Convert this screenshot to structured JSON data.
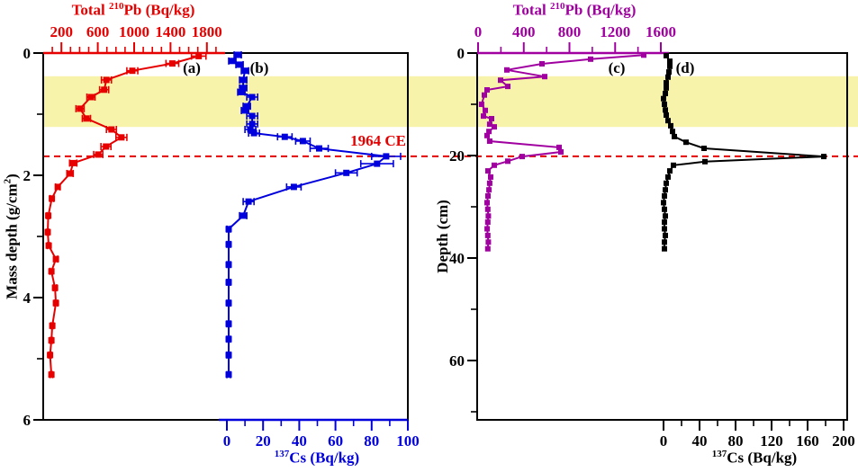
{
  "figure": {
    "left_panel": {
      "top_axis": {
        "title_prefix": "Total ",
        "title_sup": "210",
        "title_suffix": "Pb (Bq/kg)",
        "color": "#e60000",
        "labeled_ticks": [
          200,
          600,
          1000,
          1400,
          1800
        ],
        "minor_ticks": [
          100,
          300,
          400,
          500,
          700,
          800,
          900,
          1100,
          1200,
          1300,
          1500,
          1600,
          1700,
          1900
        ],
        "range": [
          0,
          2000
        ]
      },
      "bottom_axis": {
        "title_prefix": "",
        "title_sup": "137",
        "title_suffix": "Cs (Bq/kg)",
        "color": "#0000dd",
        "labeled_ticks": [
          0,
          20,
          40,
          60,
          80,
          100
        ],
        "minor_ticks": [
          10,
          30,
          50,
          70,
          90
        ],
        "range": [
          0,
          100
        ]
      },
      "y_axis": {
        "title_prefix": "Mass depth (g/cm",
        "title_sup": "2",
        "title_suffix": ")",
        "labeled_ticks": [
          0,
          2,
          4,
          6
        ],
        "minor_ticks": [
          1,
          3,
          5
        ],
        "range": [
          0,
          6
        ]
      },
      "series_label_a": "(a)",
      "series_label_b": "(b)"
    },
    "right_panel": {
      "top_axis": {
        "title_prefix": "Total ",
        "title_sup": "210",
        "title_suffix": "Pb (Bq/kg)",
        "color": "#a000a0",
        "labeled_ticks": [
          0,
          400,
          800,
          1200,
          1600
        ],
        "minor_ticks": [
          200,
          600,
          1000,
          1400
        ],
        "range": [
          0,
          1680
        ]
      },
      "bottom_axis": {
        "title_prefix": "",
        "title_sup": "137",
        "title_suffix": "Cs (Bq/kg)",
        "color": "#000000",
        "labeled_ticks": [
          0,
          40,
          80,
          120,
          160,
          200
        ],
        "minor_ticks": [
          20,
          60,
          100,
          140,
          180
        ],
        "range": [
          0,
          200
        ]
      },
      "y_axis": {
        "title": "Depth (cm)",
        "labeled_ticks": [
          0,
          20,
          40,
          60
        ],
        "minor_ticks": [
          10,
          30,
          50,
          70
        ],
        "range": [
          0,
          71.6
        ]
      },
      "series_label_c": "(c)",
      "series_label_d": "(d)"
    },
    "annotations": {
      "era_label": "1964 CE",
      "era_color": "#e60000",
      "era_line": {
        "mass_depth": 1.69,
        "depth_cm": 20.2
      },
      "band": {
        "color": "#f8f3ab",
        "mass_depth_range": [
          0.38,
          1.21
        ],
        "depth_cm_range": [
          4.6,
          14.4
        ]
      }
    }
  },
  "chart_data": [
    {
      "id": "total-pb210-vs-mass-depth",
      "label": "(a)",
      "type": "line",
      "panel": "left",
      "x_axis": "top",
      "color": "#e60000",
      "marker": "square",
      "marker_size": 7,
      "x_title": "Total 210Pb (Bq/kg)",
      "y_title": "Mass depth (g/cm2)",
      "x_range": [
        0,
        2000
      ],
      "y_range": [
        0,
        6
      ],
      "points": [
        [
          1710,
          0.05
        ],
        [
          1420,
          0.17
        ],
        [
          980,
          0.29
        ],
        [
          695,
          0.44
        ],
        [
          670,
          0.6
        ],
        [
          525,
          0.72
        ],
        [
          405,
          0.91
        ],
        [
          475,
          1.07
        ],
        [
          750,
          1.25
        ],
        [
          860,
          1.38
        ],
        [
          690,
          1.53
        ],
        [
          605,
          1.66
        ],
        [
          330,
          1.8
        ],
        [
          295,
          1.97
        ],
        [
          160,
          2.19
        ],
        [
          95,
          2.38
        ],
        [
          55,
          2.66
        ],
        [
          50,
          2.93
        ],
        [
          60,
          3.15
        ],
        [
          140,
          3.37
        ],
        [
          90,
          3.57
        ],
        [
          130,
          3.84
        ],
        [
          140,
          4.09
        ],
        [
          100,
          4.46
        ],
        [
          90,
          4.7
        ],
        [
          75,
          4.94
        ],
        [
          90,
          5.26
        ]
      ],
      "errors": [
        80,
        70,
        60,
        55,
        50,
        45,
        45,
        45,
        55,
        60,
        55,
        50,
        40,
        35,
        25,
        20,
        15,
        15,
        15,
        20,
        15,
        18,
        18,
        15,
        15,
        14,
        14
      ]
    },
    {
      "id": "cs137-vs-mass-depth",
      "label": "(b)",
      "type": "line",
      "panel": "left",
      "x_axis": "bottom",
      "color": "#0000dd",
      "marker": "square",
      "marker_size": 7,
      "x_title": "137Cs (Bq/kg)",
      "y_title": "Mass depth (g/cm2)",
      "x_range": [
        0,
        100
      ],
      "y_range": [
        0,
        6
      ],
      "points": [
        [
          6,
          0.03
        ],
        [
          3,
          0.13
        ],
        [
          7,
          0.19
        ],
        [
          10,
          0.29
        ],
        [
          9,
          0.44
        ],
        [
          9,
          0.57
        ],
        [
          8,
          0.64
        ],
        [
          14,
          0.72
        ],
        [
          11,
          0.87
        ],
        [
          10,
          0.94
        ],
        [
          14,
          1.03
        ],
        [
          14,
          1.16
        ],
        [
          13,
          1.25
        ],
        [
          15,
          1.31
        ],
        [
          32,
          1.37
        ],
        [
          42,
          1.44
        ],
        [
          51,
          1.56
        ],
        [
          88,
          1.69
        ],
        [
          83,
          1.81
        ],
        [
          66,
          1.96
        ],
        [
          37,
          2.19
        ],
        [
          12,
          2.43
        ],
        [
          9,
          2.66
        ],
        [
          1,
          2.88
        ],
        [
          1,
          3.13
        ],
        [
          1,
          3.46
        ],
        [
          1,
          3.75
        ],
        [
          1,
          4.09
        ],
        [
          1,
          4.43
        ],
        [
          1,
          4.68
        ],
        [
          1,
          4.94
        ],
        [
          1,
          5.26
        ]
      ],
      "errors": [
        2,
        2,
        2,
        2,
        2,
        2,
        2,
        3,
        2,
        2,
        3,
        3,
        3,
        3,
        4,
        4,
        5,
        8,
        9,
        6,
        4,
        3,
        2,
        1,
        1,
        1,
        1,
        1,
        1,
        1,
        1,
        1
      ]
    },
    {
      "id": "total-pb210-vs-depth",
      "label": "(c)",
      "type": "line",
      "panel": "right",
      "x_axis": "top",
      "color": "#a000a0",
      "marker": "square",
      "marker_size": 6,
      "x_title": "Total 210Pb (Bq/kg)",
      "y_title": "Depth (cm)",
      "x_range": [
        0,
        1680
      ],
      "y_range": [
        0,
        71.6
      ],
      "points": [
        [
          1450,
          0.4
        ],
        [
          985,
          1.2
        ],
        [
          560,
          2.1
        ],
        [
          252,
          3.3
        ],
        [
          583,
          4.6
        ],
        [
          197,
          5.3
        ],
        [
          260,
          6.5
        ],
        [
          79,
          7.2
        ],
        [
          55,
          8.2
        ],
        [
          31,
          10.0
        ],
        [
          63,
          11.2
        ],
        [
          47,
          12.3
        ],
        [
          118,
          12.8
        ],
        [
          102,
          13.9
        ],
        [
          142,
          14.4
        ],
        [
          95,
          15.3
        ],
        [
          79,
          16.1
        ],
        [
          102,
          17.2
        ],
        [
          709,
          18.4
        ],
        [
          725,
          19.3
        ],
        [
          386,
          20.2
        ],
        [
          260,
          21.1
        ],
        [
          142,
          21.9
        ],
        [
          87,
          23.0
        ],
        [
          110,
          24.2
        ],
        [
          102,
          25.4
        ],
        [
          95,
          26.7
        ],
        [
          87,
          27.9
        ],
        [
          79,
          29.2
        ],
        [
          85,
          30.5
        ],
        [
          90,
          31.8
        ],
        [
          85,
          33.0
        ],
        [
          80,
          34.3
        ],
        [
          85,
          35.6
        ],
        [
          90,
          36.9
        ],
        [
          85,
          38.2
        ]
      ]
    },
    {
      "id": "cs137-vs-depth",
      "label": "(d)",
      "type": "line",
      "panel": "right",
      "x_axis": "bottom",
      "color": "#000000",
      "marker": "square",
      "marker_size": 6,
      "x_title": "137Cs (Bq/kg)",
      "y_title": "Depth (cm)",
      "x_range": [
        0,
        200
      ],
      "y_range": [
        0,
        71.6
      ],
      "points": [
        [
          3,
          0.5
        ],
        [
          7,
          1.6
        ],
        [
          7,
          2.6
        ],
        [
          6,
          3.7
        ],
        [
          5,
          4.7
        ],
        [
          3,
          5.8
        ],
        [
          3,
          6.8
        ],
        [
          2,
          7.9
        ],
        [
          0,
          8.9
        ],
        [
          1,
          10.0
        ],
        [
          2,
          11.1
        ],
        [
          3,
          12.1
        ],
        [
          5,
          13.2
        ],
        [
          8,
          14.2
        ],
        [
          10,
          15.3
        ],
        [
          12,
          16.3
        ],
        [
          25,
          17.4
        ],
        [
          45,
          18.6
        ],
        [
          178,
          20.2
        ],
        [
          46,
          21.2
        ],
        [
          11,
          21.9
        ],
        [
          7,
          23.0
        ],
        [
          5,
          24.2
        ],
        [
          3,
          25.4
        ],
        [
          2,
          26.7
        ],
        [
          1,
          27.9
        ],
        [
          0,
          29.2
        ],
        [
          1,
          30.5
        ],
        [
          2,
          31.8
        ],
        [
          1,
          33.0
        ],
        [
          1,
          34.3
        ],
        [
          2,
          35.6
        ],
        [
          1,
          36.9
        ],
        [
          1,
          38.2
        ]
      ]
    }
  ]
}
